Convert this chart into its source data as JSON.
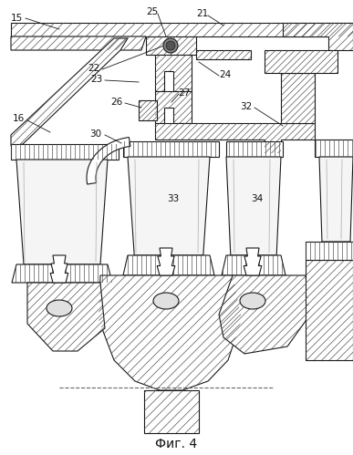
{
  "title": "Фиг. 4",
  "title_fontsize": 10,
  "bg_color": "#ffffff",
  "line_color": "#1a1a1a",
  "fig_width": 3.87,
  "fig_height": 4.99,
  "dpi": 100
}
